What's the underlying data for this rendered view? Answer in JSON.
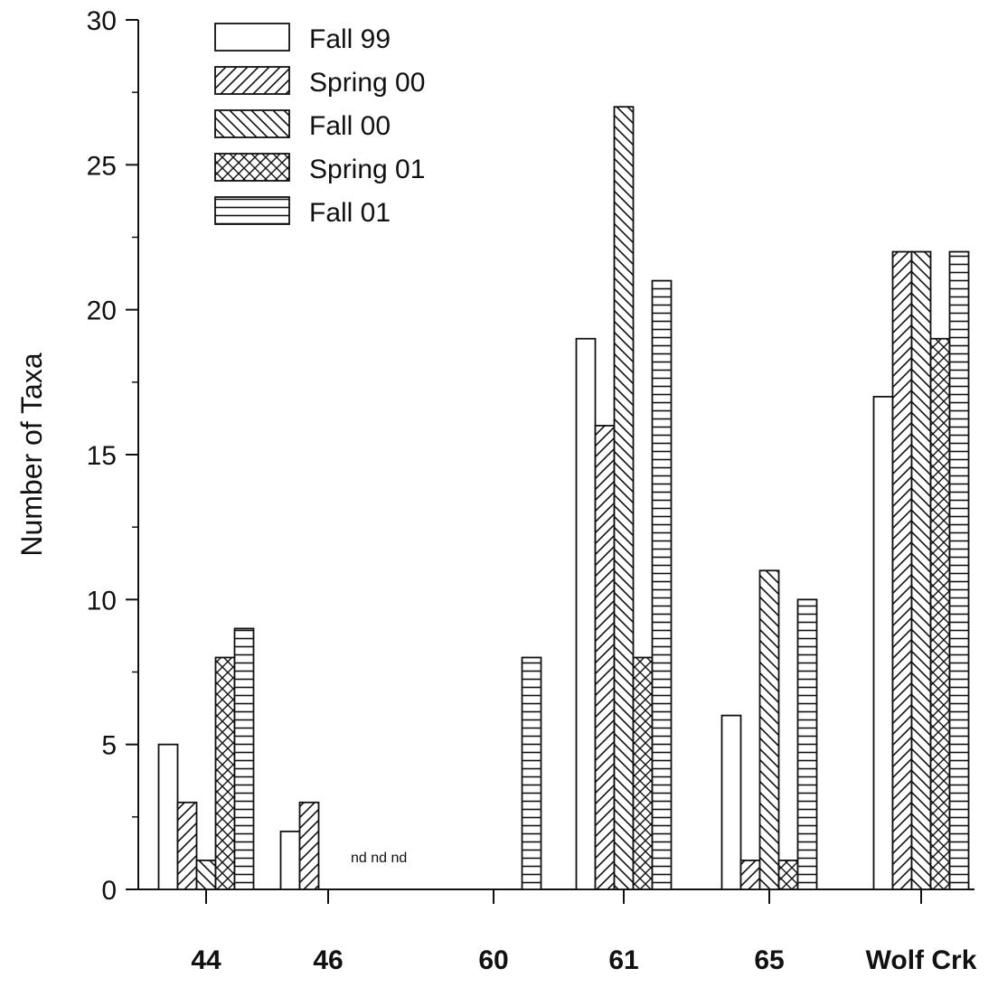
{
  "chart_data": {
    "type": "bar",
    "title": "",
    "xlabel": "",
    "ylabel": "Number of Taxa",
    "ylim": [
      0,
      30
    ],
    "yticks": [
      0,
      5,
      10,
      15,
      20,
      25,
      30
    ],
    "grid": false,
    "legend_position": "top-left",
    "categories": [
      "44",
      "46",
      "60",
      "61",
      "65",
      "Wolf Crk"
    ],
    "series": [
      {
        "name": "Fall 99",
        "pattern": "none",
        "values": [
          5,
          2,
          0,
          19,
          6,
          17
        ]
      },
      {
        "name": "Spring 00",
        "pattern": "forward-diagonal",
        "values": [
          3,
          3,
          0,
          16,
          1,
          22
        ]
      },
      {
        "name": "Fall 00",
        "pattern": "back-diagonal",
        "values": [
          1,
          null,
          0,
          27,
          11,
          22
        ]
      },
      {
        "name": "Spring 01",
        "pattern": "crosshatch",
        "values": [
          8,
          null,
          0,
          8,
          1,
          19
        ]
      },
      {
        "name": "Fall 01",
        "pattern": "horizontal",
        "values": [
          9,
          null,
          8,
          21,
          10,
          22
        ]
      }
    ],
    "annotations": [
      {
        "text": "nd nd nd",
        "category": "46"
      }
    ]
  }
}
